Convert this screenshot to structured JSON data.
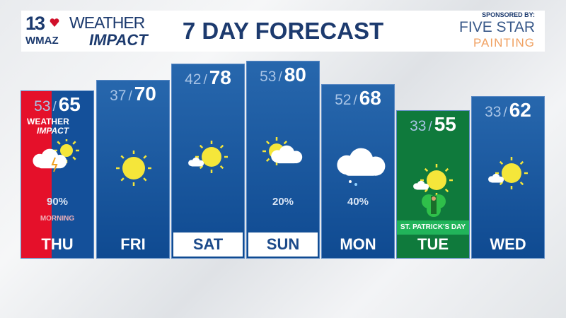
{
  "header": {
    "station_number": "13",
    "station": "WMAZ",
    "brand_line1": "WEATHER",
    "brand_line2": "IMPACT",
    "title": "7 DAY FORECAST",
    "sponsor_label": "SPONSORED BY:",
    "sponsor_line1": "FIVE STAR",
    "sponsor_line2": "PAINTING"
  },
  "days": [
    {
      "day": "THU",
      "low": "53",
      "high": "65",
      "icon": "thunderstorm-partly-sunny-icon",
      "precip": "90%",
      "note": "MORNING",
      "badge1": "WEATHER",
      "badge2": "IMPACT"
    },
    {
      "day": "FRI",
      "low": "37",
      "high": "70",
      "icon": "sunny-icon"
    },
    {
      "day": "SAT",
      "low": "42",
      "high": "78",
      "icon": "mostly-sunny-icon"
    },
    {
      "day": "SUN",
      "low": "53",
      "high": "80",
      "icon": "partly-cloudy-icon",
      "precip": "20%"
    },
    {
      "day": "MON",
      "low": "52",
      "high": "68",
      "icon": "cloudy-showers-icon",
      "precip": "40%"
    },
    {
      "day": "TUE",
      "low": "33",
      "high": "55",
      "icon": "mostly-sunny-icon",
      "holiday": "ST. PATRICK'S DAY"
    },
    {
      "day": "WED",
      "low": "33",
      "high": "62",
      "icon": "mostly-sunny-icon"
    }
  ],
  "colors": {
    "navy": "#1c3a6e",
    "column_blue": "#14509a",
    "alert_red": "#e5102a",
    "holiday_green": "#0f7a3c",
    "sun": "#f5e63a"
  }
}
